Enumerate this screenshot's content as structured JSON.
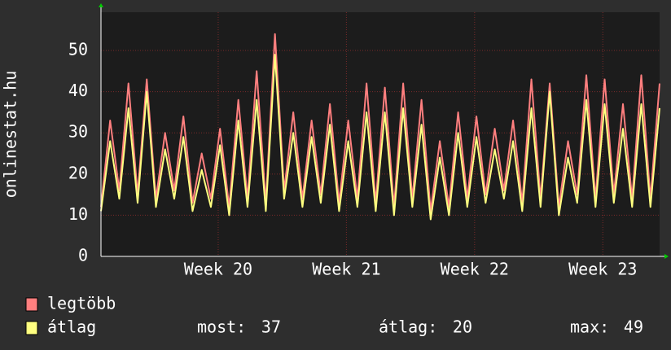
{
  "chart_data": {
    "type": "line",
    "y_label": "onlinestat.hu",
    "x": [
      0,
      0.5,
      1,
      1.5,
      2,
      2.5,
      3,
      3.5,
      4,
      4.5,
      5,
      5.5,
      6,
      6.5,
      7,
      7.5,
      8,
      8.5,
      9,
      9.5,
      10,
      10.5,
      11,
      11.5,
      12,
      12.5,
      13,
      13.5,
      14,
      14.5,
      15,
      15.5,
      16,
      16.5,
      17,
      17.5,
      18,
      18.5,
      19,
      19.5,
      20,
      20.5,
      21,
      21.5,
      22,
      22.5,
      23,
      23.5,
      24,
      24.5,
      25,
      25.5,
      26,
      26.5,
      27,
      27.5,
      28,
      28.5,
      29,
      29.5,
      30,
      30.5
    ],
    "xlim": [
      0,
      30.5
    ],
    "xticks": [
      {
        "value": 6.4,
        "label": "Week 20"
      },
      {
        "value": 13.4,
        "label": "Week 21"
      },
      {
        "value": 20.4,
        "label": "Week 22"
      },
      {
        "value": 27.4,
        "label": "Week 23"
      }
    ],
    "ylim": [
      0,
      59.3
    ],
    "yticks": [
      0,
      10,
      20,
      30,
      40,
      50
    ],
    "grid": true,
    "series": [
      {
        "name": "legtöbb",
        "color": "#ff7f7f",
        "values": [
          12,
          33,
          16,
          42,
          15,
          43,
          14,
          30,
          16,
          34,
          13,
          25,
          14,
          31,
          12,
          38,
          14,
          45,
          13,
          54,
          16,
          35,
          14,
          33,
          15,
          37,
          13,
          33,
          14,
          42,
          13,
          41,
          12,
          42,
          14,
          38,
          11,
          28,
          12,
          35,
          14,
          34,
          15,
          31,
          16,
          33,
          13,
          43,
          14,
          42,
          12,
          28,
          15,
          44,
          14,
          43,
          15,
          37,
          14,
          44,
          14,
          42
        ]
      },
      {
        "name": "átlag",
        "color": "#ffff80",
        "values": [
          11,
          28,
          14,
          36,
          13,
          40,
          12,
          26,
          14,
          29,
          11,
          21,
          12,
          27,
          10,
          33,
          12,
          38,
          11,
          49,
          14,
          30,
          12,
          29,
          13,
          32,
          11,
          28,
          12,
          35,
          11,
          35,
          10,
          36,
          12,
          32,
          9,
          24,
          10,
          30,
          12,
          29,
          13,
          26,
          14,
          28,
          11,
          36,
          12,
          40,
          10,
          24,
          13,
          38,
          12,
          37,
          13,
          31,
          12,
          37,
          12,
          36
        ]
      }
    ],
    "stats": [
      {
        "label": "most:",
        "value": 37
      },
      {
        "label": "átlag:",
        "value": 20
      },
      {
        "label": "max:",
        "value": 49
      }
    ]
  }
}
